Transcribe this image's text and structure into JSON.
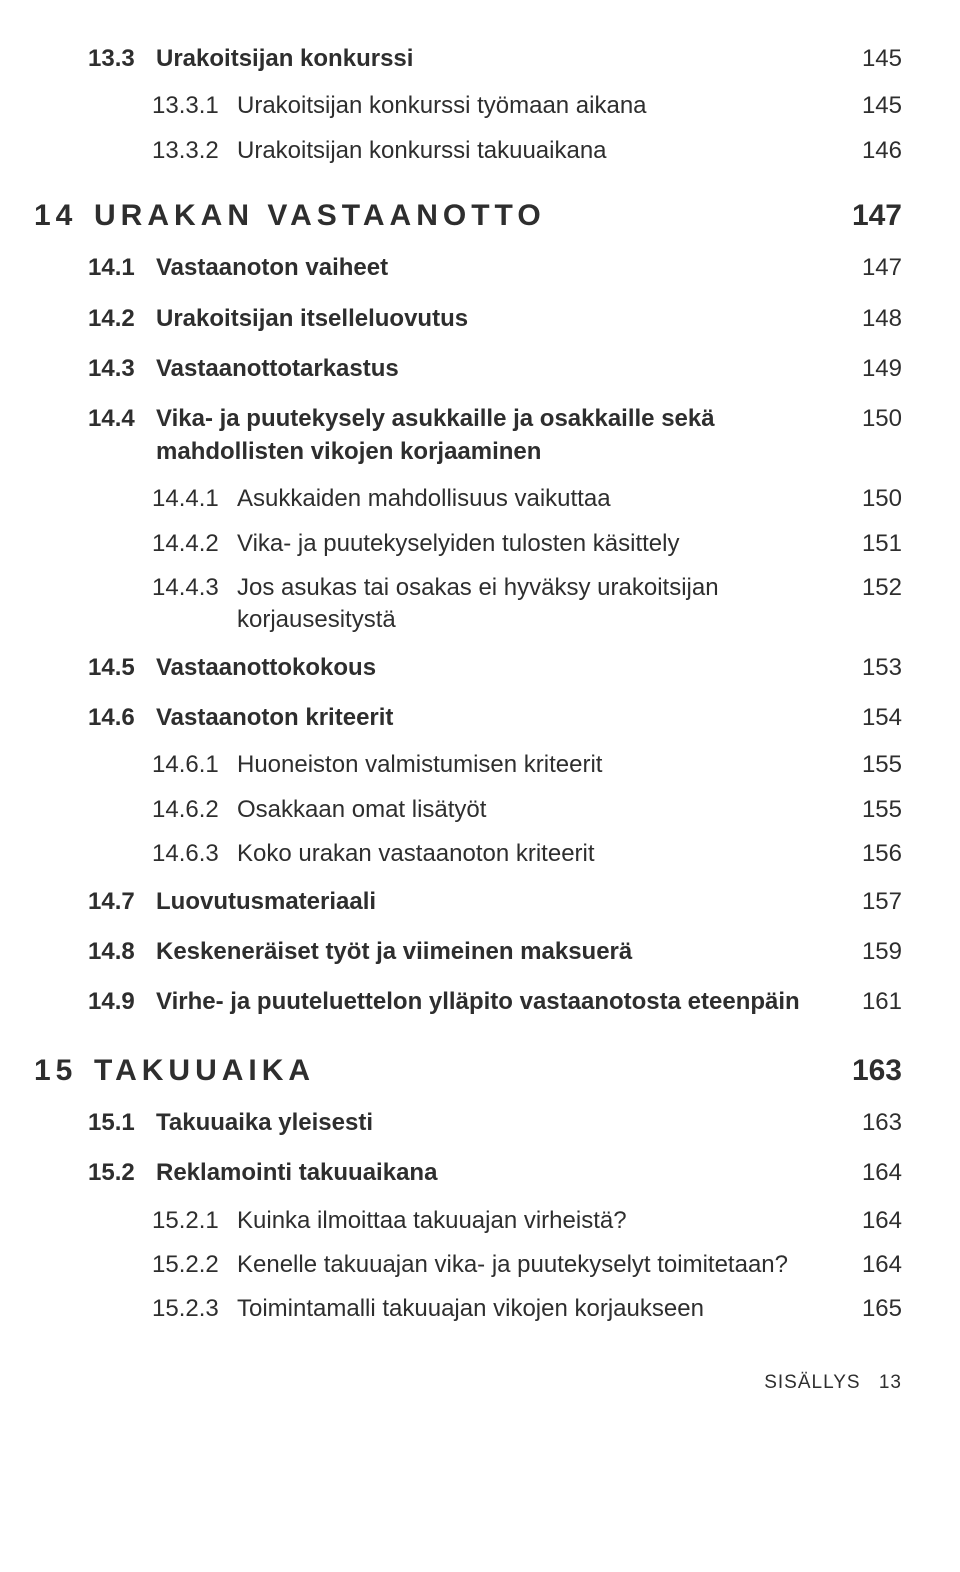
{
  "toc": [
    {
      "level": "l1",
      "num": "13.3",
      "txt": "Urakoitsijan konkurssi",
      "page": "145"
    },
    {
      "level": "l2",
      "num": "13.3.1",
      "txt": "Urakoitsijan konkurssi työmaan aikana",
      "page": "145"
    },
    {
      "level": "l2",
      "num": "13.3.2",
      "txt": "Urakoitsijan konkurssi takuuaikana",
      "page": "146"
    },
    {
      "level": "chapter",
      "num": "14",
      "txt": "URAKAN VASTAANOTTO",
      "page": "147"
    },
    {
      "level": "l1",
      "num": "14.1",
      "txt": "Vastaanoton vaiheet",
      "page": "147"
    },
    {
      "level": "l1",
      "num": "14.2",
      "txt": "Urakoitsijan itselleluovutus",
      "page": "148"
    },
    {
      "level": "l1",
      "num": "14.3",
      "txt": "Vastaanottotarkastus",
      "page": "149"
    },
    {
      "level": "l1",
      "num": "14.4",
      "txt": "Vika- ja puutekysely asukkaille ja osakkaille sekä mahdollisten vikojen korjaaminen",
      "page": "150"
    },
    {
      "level": "l2",
      "num": "14.4.1",
      "txt": "Asukkaiden mahdollisuus vaikuttaa",
      "page": "150"
    },
    {
      "level": "l2",
      "num": "14.4.2",
      "txt": "Vika- ja puutekyselyiden tulosten käsittely",
      "page": "151"
    },
    {
      "level": "l2",
      "num": "14.4.3",
      "txt": "Jos asukas tai osakas ei hyväksy urakoitsijan korjausesitystä",
      "page": "152"
    },
    {
      "level": "l1",
      "num": "14.5",
      "txt": "Vastaanottokokous",
      "page": "153"
    },
    {
      "level": "l1",
      "num": "14.6",
      "txt": "Vastaanoton kriteerit",
      "page": "154"
    },
    {
      "level": "l2",
      "num": "14.6.1",
      "txt": "Huoneiston valmistumisen kriteerit",
      "page": "155"
    },
    {
      "level": "l2",
      "num": "14.6.2",
      "txt": "Osakkaan omat lisätyöt",
      "page": "155"
    },
    {
      "level": "l2",
      "num": "14.6.3",
      "txt": "Koko urakan vastaanoton kriteerit",
      "page": "156"
    },
    {
      "level": "l1",
      "num": "14.7",
      "txt": "Luovutusmateriaali",
      "page": "157"
    },
    {
      "level": "l1",
      "num": "14.8",
      "txt": "Keskeneräiset työt ja viimeinen maksuerä",
      "page": "159"
    },
    {
      "level": "l1",
      "num": "14.9",
      "txt": "Virhe- ja puuteluettelon ylläpito vastaanotosta eteenpäin",
      "page": "161"
    },
    {
      "level": "chapter",
      "num": "15",
      "txt": "TAKUUAIKA",
      "page": "163"
    },
    {
      "level": "l1",
      "num": "15.1",
      "txt": "Takuuaika yleisesti",
      "page": "163"
    },
    {
      "level": "l1",
      "num": "15.2",
      "txt": "Reklamointi takuuaikana",
      "page": "164"
    },
    {
      "level": "l2",
      "num": "15.2.1",
      "txt": "Kuinka ilmoittaa takuuajan virheistä?",
      "page": "164"
    },
    {
      "level": "l2",
      "num": "15.2.2",
      "txt": "Kenelle takuuajan vika- ja puutekyselyt toimitetaan?",
      "page": "164"
    },
    {
      "level": "l2",
      "num": "15.2.3",
      "txt": "Toimintamalli takuuajan vikojen korjaukseen",
      "page": "165"
    }
  ],
  "footer": {
    "label": "SISÄLLYS",
    "page": "13"
  }
}
